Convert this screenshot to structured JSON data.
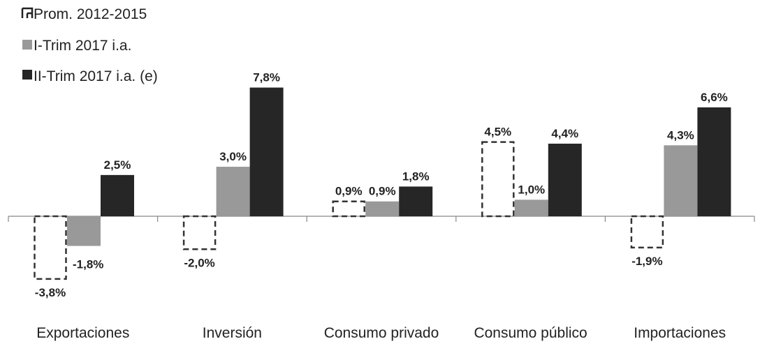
{
  "chart_data": {
    "type": "bar",
    "categories": [
      "Exportaciones",
      "Inversión",
      "Consumo privado",
      "Consumo público",
      "Importaciones"
    ],
    "series": [
      {
        "name": "Prom. 2012-2015",
        "style": "dashed-outline",
        "color": "#333333",
        "values": [
          -3.8,
          -2.0,
          0.9,
          4.5,
          -1.9
        ],
        "labels": [
          "-3,8%",
          "-2,0%",
          "0,9%",
          "4,5%",
          "-1,9%"
        ]
      },
      {
        "name": "I-Trim 2017 i.a.",
        "style": "filled",
        "color": "#999999",
        "values": [
          -1.8,
          3.0,
          0.9,
          1.0,
          4.3
        ],
        "labels": [
          "-1,8%",
          "3,0%",
          "0,9%",
          "1,0%",
          "4,3%"
        ]
      },
      {
        "name": "II-Trim 2017 i.a. (e)",
        "style": "filled",
        "color": "#262626",
        "values": [
          2.5,
          7.8,
          1.8,
          4.4,
          6.6
        ],
        "labels": [
          "2,5%",
          "7,8%",
          "1,8%",
          "4,4%",
          "6,6%"
        ]
      }
    ],
    "legend_position": "top-left",
    "grid": false
  }
}
